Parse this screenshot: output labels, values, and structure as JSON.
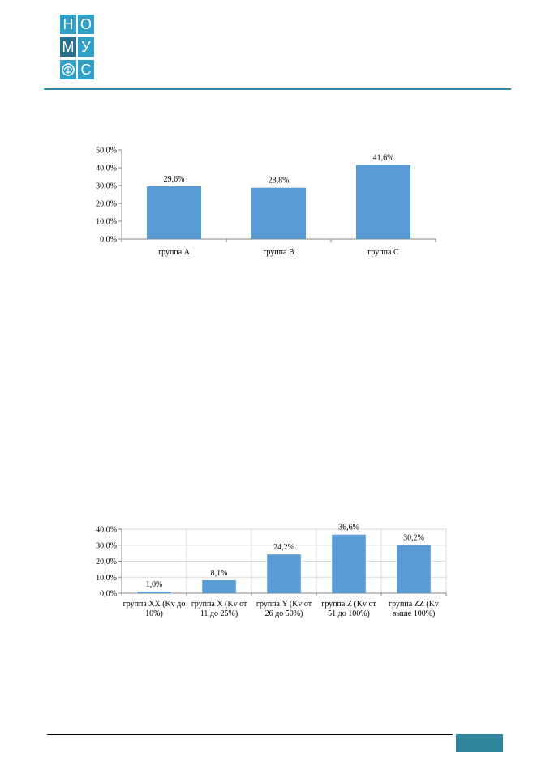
{
  "logo": {
    "letters": [
      "Н",
      "О",
      "М",
      "У",
      "С"
    ],
    "colors": {
      "blue": "#31a0c6",
      "dark": "#2a6f8c"
    }
  },
  "colors": {
    "bar": "#5b9bd5",
    "axis": "#868686",
    "grid": "#d9d9d9",
    "header_rule": "#2e86a5",
    "page_box": "#31859c"
  },
  "chart_data": [
    {
      "type": "bar",
      "categories": [
        "группа А",
        "группа В",
        "группа С"
      ],
      "values": [
        29.6,
        28.8,
        41.6
      ],
      "value_labels": [
        "29,6%",
        "28,8%",
        "41,6%"
      ],
      "ylim": [
        0,
        50
      ],
      "yticks": [
        0,
        10,
        20,
        30,
        40,
        50
      ],
      "ytick_labels": [
        "0,0%",
        "10,0%",
        "20,0%",
        "30,0%",
        "40,0%",
        "50,0%"
      ],
      "title": "",
      "xlabel": "",
      "ylabel": "",
      "grid": false,
      "legend": "none"
    },
    {
      "type": "bar",
      "categories": [
        [
          "группа XX (Kv до",
          "10%)"
        ],
        [
          "группа X (Kv от",
          "11 до 25%)"
        ],
        [
          "группа Y (Kv от",
          "26 до 50%)"
        ],
        [
          "группа Z (Kv от",
          "51 до 100%)"
        ],
        [
          "группа ZZ (Kv",
          "выше 100%)"
        ]
      ],
      "values": [
        1.0,
        8.1,
        24.2,
        36.6,
        30.2
      ],
      "value_labels": [
        "1,0%",
        "8,1%",
        "24,2%",
        "36,6%",
        "30,2%"
      ],
      "ylim": [
        0,
        40
      ],
      "yticks": [
        0,
        10,
        20,
        30,
        40
      ],
      "ytick_labels": [
        "0,0%",
        "10,0%",
        "20,0%",
        "30,0%",
        "40,0%"
      ],
      "title": "",
      "xlabel": "",
      "ylabel": "",
      "grid": true,
      "legend": "none"
    }
  ]
}
